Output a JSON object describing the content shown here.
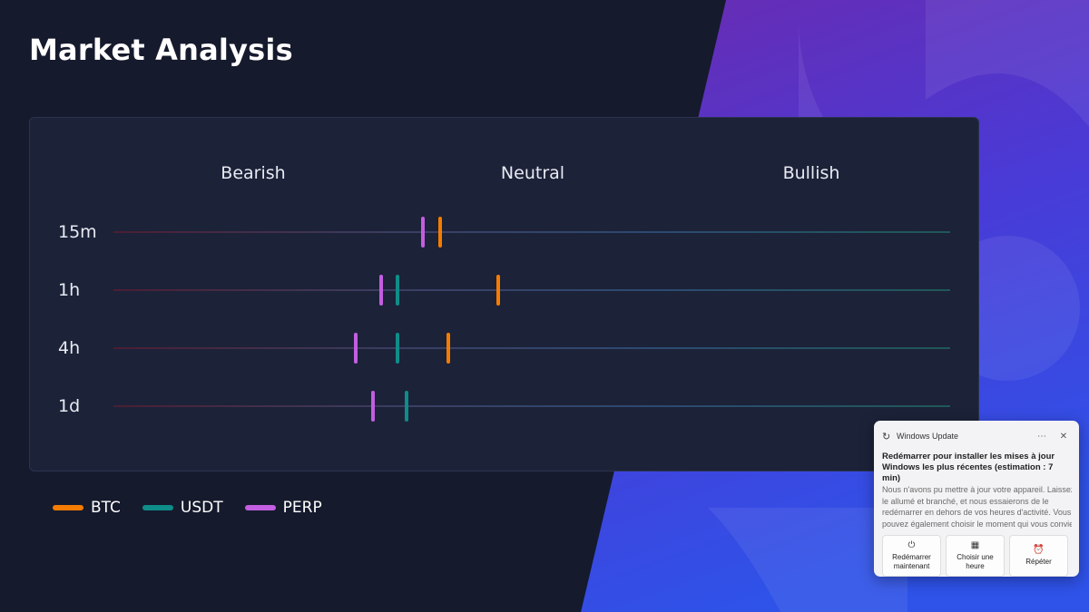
{
  "page": {
    "title": "Market Analysis"
  },
  "chart_data": {
    "type": "scatter",
    "zones": [
      "Bearish",
      "Neutral",
      "Bullish"
    ],
    "xlim": [
      0,
      100
    ],
    "timeframes": [
      "15m",
      "1h",
      "4h",
      "1d"
    ],
    "series": [
      {
        "name": "BTC",
        "color": "#f57c00",
        "values": [
          39,
          46,
          40,
          null
        ]
      },
      {
        "name": "USDT",
        "color": "#0e8d89",
        "values": [
          null,
          34,
          34,
          35
        ]
      },
      {
        "name": "PERP",
        "color": "#c25ee0",
        "values": [
          37,
          32,
          29,
          31
        ]
      }
    ]
  },
  "legend": [
    {
      "label": "BTC",
      "color": "#f57c00"
    },
    {
      "label": "USDT",
      "color": "#0e8d89"
    },
    {
      "label": "PERP",
      "color": "#c25ee0"
    }
  ],
  "notification": {
    "app_name": "Windows Update",
    "app_icon": "refresh-icon",
    "title": "Redémarrer pour installer les mises à jour Windows les plus récentes (estimation : 7 min)",
    "body_lines": [
      "Nous n'avons pu mettre à jour votre appareil. Laissez-",
      "le allumé et branché, et nous essaierons de le",
      "redémarrer en dehors de vos heures d'activité. Vous",
      "pouvez également choisir le moment qui vous convien"
    ],
    "actions": [
      {
        "label": "Redémarrer maintenant",
        "icon": "power-icon"
      },
      {
        "label": "Choisir une heure",
        "icon": "calendar-clock-icon"
      },
      {
        "label": "Répéter",
        "icon": "alarm-icon"
      }
    ]
  }
}
